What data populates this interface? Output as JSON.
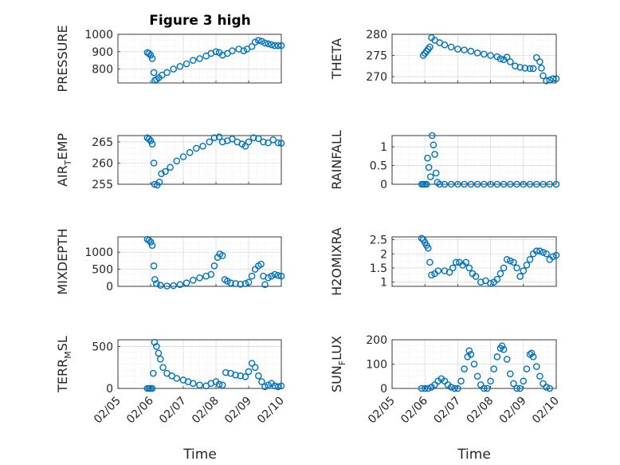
{
  "figure": {
    "title": "Figure 3 high",
    "xlabel": "Time"
  },
  "chart_data": [
    {
      "type": "scatter",
      "ylabel": "PRESSURE",
      "ylim": [
        720,
        1000
      ],
      "yticks": [
        800,
        900,
        1000
      ],
      "xlim": [
        0,
        5
      ],
      "xticklabels": [
        "02/05",
        "02/06",
        "02/07",
        "02/08",
        "02/09",
        "02/10"
      ],
      "pts": [
        [
          0.9,
          895
        ],
        [
          0.95,
          890
        ],
        [
          1.0,
          880
        ],
        [
          1.05,
          860
        ],
        [
          1.1,
          780
        ],
        [
          1.13,
          735
        ],
        [
          1.18,
          740
        ],
        [
          1.25,
          750
        ],
        [
          1.35,
          765
        ],
        [
          1.5,
          780
        ],
        [
          1.7,
          800
        ],
        [
          1.9,
          815
        ],
        [
          2.1,
          830
        ],
        [
          2.3,
          850
        ],
        [
          2.5,
          860
        ],
        [
          2.7,
          875
        ],
        [
          2.85,
          890
        ],
        [
          3.0,
          900
        ],
        [
          3.1,
          895
        ],
        [
          3.2,
          880
        ],
        [
          3.35,
          890
        ],
        [
          3.5,
          905
        ],
        [
          3.7,
          915
        ],
        [
          3.85,
          905
        ],
        [
          3.95,
          915
        ],
        [
          4.1,
          930
        ],
        [
          4.2,
          955
        ],
        [
          4.3,
          965
        ],
        [
          4.4,
          960
        ],
        [
          4.5,
          950
        ],
        [
          4.6,
          945
        ],
        [
          4.7,
          940
        ],
        [
          4.8,
          935
        ],
        [
          4.9,
          935
        ],
        [
          5.0,
          935
        ]
      ]
    },
    {
      "type": "scatter",
      "ylabel": "THETA",
      "ylim": [
        268.5,
        280
      ],
      "yticks": [
        270,
        275,
        280
      ],
      "xlim": [
        0,
        5
      ],
      "xticklabels": [
        "02/05",
        "02/06",
        "02/07",
        "02/08",
        "02/09",
        "02/10"
      ],
      "pts": [
        [
          0.95,
          275
        ],
        [
          1.0,
          275.5
        ],
        [
          1.05,
          276
        ],
        [
          1.1,
          276.5
        ],
        [
          1.15,
          277
        ],
        [
          1.2,
          279.2
        ],
        [
          1.3,
          278.6
        ],
        [
          1.45,
          278
        ],
        [
          1.6,
          277.5
        ],
        [
          1.8,
          277
        ],
        [
          2.0,
          276.5
        ],
        [
          2.2,
          276.3
        ],
        [
          2.4,
          276
        ],
        [
          2.6,
          275.6
        ],
        [
          2.8,
          275.3
        ],
        [
          3.0,
          275
        ],
        [
          3.2,
          274.7
        ],
        [
          3.3,
          274.2
        ],
        [
          3.4,
          274
        ],
        [
          3.5,
          274.6
        ],
        [
          3.6,
          273.5
        ],
        [
          3.75,
          272.5
        ],
        [
          3.9,
          272.2
        ],
        [
          4.05,
          272
        ],
        [
          4.2,
          271.9
        ],
        [
          4.3,
          271.9
        ],
        [
          4.4,
          274.5
        ],
        [
          4.5,
          273.5
        ],
        [
          4.55,
          272
        ],
        [
          4.6,
          270.2
        ],
        [
          4.7,
          269
        ],
        [
          4.8,
          269.2
        ],
        [
          4.9,
          269.5
        ],
        [
          5.0,
          269.5
        ]
      ]
    },
    {
      "type": "scatter",
      "ylabel_main": "AIR",
      "ylabel_sub": "T",
      "ylabel_rest": "EMP",
      "ylim": [
        255,
        266.5
      ],
      "yticks": [
        255,
        260,
        265
      ],
      "xlim": [
        0,
        5
      ],
      "xticklabels": [
        "02/05",
        "02/06",
        "02/07",
        "02/08",
        "02/09",
        "02/10"
      ],
      "pts": [
        [
          0.9,
          266
        ],
        [
          0.95,
          265.7
        ],
        [
          1.0,
          265.3
        ],
        [
          1.05,
          264.5
        ],
        [
          1.1,
          260
        ],
        [
          1.12,
          255
        ],
        [
          1.2,
          254.8
        ],
        [
          1.27,
          255.5
        ],
        [
          1.33,
          257.5
        ],
        [
          1.45,
          258
        ],
        [
          1.6,
          259
        ],
        [
          1.8,
          260.5
        ],
        [
          2.0,
          261.5
        ],
        [
          2.2,
          262.5
        ],
        [
          2.4,
          263.5
        ],
        [
          2.6,
          264
        ],
        [
          2.8,
          265
        ],
        [
          2.95,
          266
        ],
        [
          3.1,
          266.2
        ],
        [
          3.2,
          265
        ],
        [
          3.35,
          265.3
        ],
        [
          3.5,
          265.7
        ],
        [
          3.65,
          265
        ],
        [
          3.8,
          264.5
        ],
        [
          3.9,
          264
        ],
        [
          4.0,
          265
        ],
        [
          4.15,
          266
        ],
        [
          4.3,
          265.8
        ],
        [
          4.45,
          265
        ],
        [
          4.6,
          264.8
        ],
        [
          4.75,
          265.5
        ],
        [
          4.9,
          264.8
        ],
        [
          5.0,
          264.7
        ]
      ]
    },
    {
      "type": "scatter",
      "ylabel": "RAINFALL",
      "ylim": [
        0,
        1.3
      ],
      "yticks": [
        0,
        0.5,
        1
      ],
      "yticklabels": [
        "0",
        "0.5",
        "1"
      ],
      "xlim": [
        0,
        5
      ],
      "xticklabels": [
        "02/05",
        "02/06",
        "02/07",
        "02/08",
        "02/09",
        "02/10"
      ],
      "pts": [
        [
          0.9,
          0
        ],
        [
          0.95,
          0
        ],
        [
          1.0,
          0
        ],
        [
          1.05,
          0
        ],
        [
          1.08,
          0.7
        ],
        [
          1.12,
          0.45
        ],
        [
          1.17,
          0.2
        ],
        [
          1.22,
          1.3
        ],
        [
          1.26,
          1.05
        ],
        [
          1.3,
          0.8
        ],
        [
          1.34,
          0.3
        ],
        [
          1.38,
          0.05
        ],
        [
          1.45,
          0
        ],
        [
          1.6,
          0
        ],
        [
          1.8,
          0
        ],
        [
          2.0,
          0
        ],
        [
          2.2,
          0
        ],
        [
          2.4,
          0
        ],
        [
          2.6,
          0
        ],
        [
          2.8,
          0
        ],
        [
          3.0,
          0
        ],
        [
          3.2,
          0
        ],
        [
          3.4,
          0
        ],
        [
          3.6,
          0
        ],
        [
          3.8,
          0
        ],
        [
          4.0,
          0
        ],
        [
          4.2,
          0
        ],
        [
          4.4,
          0
        ],
        [
          4.6,
          0
        ],
        [
          4.8,
          0
        ],
        [
          5.0,
          0
        ]
      ]
    },
    {
      "type": "scatter",
      "ylabel": "MIXDEPTH",
      "ylim": [
        0,
        1450
      ],
      "yticks": [
        0,
        500,
        1000
      ],
      "xlim": [
        0,
        5
      ],
      "xticklabels": [
        "02/05",
        "02/06",
        "02/07",
        "02/08",
        "02/09",
        "02/10"
      ],
      "pts": [
        [
          0.9,
          1380
        ],
        [
          0.95,
          1350
        ],
        [
          1.0,
          1300
        ],
        [
          1.05,
          1200
        ],
        [
          1.1,
          600
        ],
        [
          1.13,
          200
        ],
        [
          1.18,
          80
        ],
        [
          1.3,
          30
        ],
        [
          1.5,
          10
        ],
        [
          1.7,
          20
        ],
        [
          1.9,
          50
        ],
        [
          2.1,
          100
        ],
        [
          2.3,
          180
        ],
        [
          2.5,
          250
        ],
        [
          2.7,
          300
        ],
        [
          2.85,
          350
        ],
        [
          2.95,
          600
        ],
        [
          3.05,
          850
        ],
        [
          3.12,
          950
        ],
        [
          3.2,
          900
        ],
        [
          3.27,
          200
        ],
        [
          3.35,
          150
        ],
        [
          3.45,
          100
        ],
        [
          3.6,
          80
        ],
        [
          3.75,
          60
        ],
        [
          3.9,
          80
        ],
        [
          4.0,
          120
        ],
        [
          4.1,
          300
        ],
        [
          4.2,
          500
        ],
        [
          4.3,
          600
        ],
        [
          4.38,
          650
        ],
        [
          4.45,
          300
        ],
        [
          4.5,
          50
        ],
        [
          4.6,
          250
        ],
        [
          4.7,
          300
        ],
        [
          4.8,
          350
        ],
        [
          4.9,
          320
        ],
        [
          5.0,
          300
        ]
      ]
    },
    {
      "type": "scatter",
      "ylabel": "H2OMIXRA",
      "ylim": [
        0.85,
        2.6
      ],
      "yticks": [
        1,
        1.5,
        2,
        2.5
      ],
      "yticklabels": [
        "1",
        "1.5",
        "2",
        "2.5"
      ],
      "xlim": [
        0,
        5
      ],
      "xticklabels": [
        "02/05",
        "02/06",
        "02/07",
        "02/08",
        "02/09",
        "02/10"
      ],
      "pts": [
        [
          0.9,
          2.55
        ],
        [
          0.95,
          2.5
        ],
        [
          1.0,
          2.4
        ],
        [
          1.05,
          2.3
        ],
        [
          1.1,
          2.2
        ],
        [
          1.15,
          1.7
        ],
        [
          1.2,
          1.25
        ],
        [
          1.3,
          1.3
        ],
        [
          1.4,
          1.4
        ],
        [
          1.6,
          1.4
        ],
        [
          1.75,
          1.35
        ],
        [
          1.85,
          1.5
        ],
        [
          1.95,
          1.7
        ],
        [
          2.05,
          1.7
        ],
        [
          2.15,
          1.6
        ],
        [
          2.25,
          1.7
        ],
        [
          2.35,
          1.5
        ],
        [
          2.45,
          1.3
        ],
        [
          2.55,
          1.2
        ],
        [
          2.7,
          1.0
        ],
        [
          2.85,
          1.05
        ],
        [
          3.0,
          0.95
        ],
        [
          3.1,
          1.0
        ],
        [
          3.2,
          1.1
        ],
        [
          3.3,
          1.3
        ],
        [
          3.4,
          1.5
        ],
        [
          3.5,
          1.8
        ],
        [
          3.6,
          1.75
        ],
        [
          3.7,
          1.7
        ],
        [
          3.8,
          1.5
        ],
        [
          3.9,
          1.2
        ],
        [
          4.0,
          1.4
        ],
        [
          4.1,
          1.6
        ],
        [
          4.2,
          1.8
        ],
        [
          4.3,
          2.0
        ],
        [
          4.4,
          2.1
        ],
        [
          4.5,
          2.1
        ],
        [
          4.6,
          2.05
        ],
        [
          4.7,
          2.0
        ],
        [
          4.8,
          1.8
        ],
        [
          4.9,
          1.9
        ],
        [
          5.0,
          1.95
        ]
      ]
    },
    {
      "type": "scatter",
      "ylabel_main": "TERR",
      "ylabel_sub": "M",
      "ylabel_rest": "SL",
      "ylim": [
        0,
        580
      ],
      "yticks": [
        0,
        500
      ],
      "xlim": [
        0,
        5
      ],
      "xticklabels": [
        "02/05",
        "02/06",
        "02/07",
        "02/08",
        "02/09",
        "02/10"
      ],
      "pts": [
        [
          0.9,
          0
        ],
        [
          0.95,
          0
        ],
        [
          1.0,
          0
        ],
        [
          1.05,
          0
        ],
        [
          1.08,
          180
        ],
        [
          1.12,
          550
        ],
        [
          1.18,
          500
        ],
        [
          1.24,
          420
        ],
        [
          1.3,
          350
        ],
        [
          1.38,
          250
        ],
        [
          1.5,
          180
        ],
        [
          1.65,
          150
        ],
        [
          1.8,
          120
        ],
        [
          2.0,
          100
        ],
        [
          2.15,
          80
        ],
        [
          2.3,
          60
        ],
        [
          2.5,
          40
        ],
        [
          2.7,
          30
        ],
        [
          2.85,
          60
        ],
        [
          3.0,
          80
        ],
        [
          3.1,
          50
        ],
        [
          3.2,
          40
        ],
        [
          3.3,
          190
        ],
        [
          3.45,
          180
        ],
        [
          3.6,
          160
        ],
        [
          3.75,
          150
        ],
        [
          3.9,
          140
        ],
        [
          4.0,
          200
        ],
        [
          4.1,
          300
        ],
        [
          4.2,
          250
        ],
        [
          4.3,
          150
        ],
        [
          4.4,
          80
        ],
        [
          4.5,
          20
        ],
        [
          4.6,
          40
        ],
        [
          4.7,
          60
        ],
        [
          4.8,
          30
        ],
        [
          4.9,
          20
        ],
        [
          5.0,
          30
        ]
      ]
    },
    {
      "type": "scatter",
      "ylabel_main": "SUN",
      "ylabel_sub": "F",
      "ylabel_rest": "LUX",
      "ylim": [
        0,
        200
      ],
      "yticks": [
        0,
        100,
        200
      ],
      "xlim": [
        0,
        5
      ],
      "xticklabels": [
        "02/05",
        "02/06",
        "02/07",
        "02/08",
        "02/09",
        "02/10"
      ],
      "pts": [
        [
          0.9,
          0
        ],
        [
          1.0,
          0
        ],
        [
          1.1,
          0
        ],
        [
          1.2,
          5
        ],
        [
          1.3,
          15
        ],
        [
          1.4,
          30
        ],
        [
          1.5,
          40
        ],
        [
          1.6,
          30
        ],
        [
          1.7,
          15
        ],
        [
          1.8,
          5
        ],
        [
          1.9,
          0
        ],
        [
          2.0,
          0
        ],
        [
          2.1,
          30
        ],
        [
          2.2,
          80
        ],
        [
          2.3,
          130
        ],
        [
          2.35,
          155
        ],
        [
          2.4,
          140
        ],
        [
          2.5,
          100
        ],
        [
          2.6,
          50
        ],
        [
          2.7,
          15
        ],
        [
          2.8,
          0
        ],
        [
          2.9,
          0
        ],
        [
          3.0,
          30
        ],
        [
          3.1,
          80
        ],
        [
          3.2,
          130
        ],
        [
          3.3,
          165
        ],
        [
          3.35,
          175
        ],
        [
          3.4,
          160
        ],
        [
          3.5,
          120
        ],
        [
          3.6,
          60
        ],
        [
          3.7,
          20
        ],
        [
          3.8,
          0
        ],
        [
          3.9,
          0
        ],
        [
          4.0,
          30
        ],
        [
          4.1,
          80
        ],
        [
          4.2,
          140
        ],
        [
          4.25,
          145
        ],
        [
          4.3,
          130
        ],
        [
          4.4,
          90
        ],
        [
          4.5,
          50
        ],
        [
          4.6,
          20
        ],
        [
          4.7,
          5
        ],
        [
          4.8,
          0
        ]
      ]
    }
  ]
}
